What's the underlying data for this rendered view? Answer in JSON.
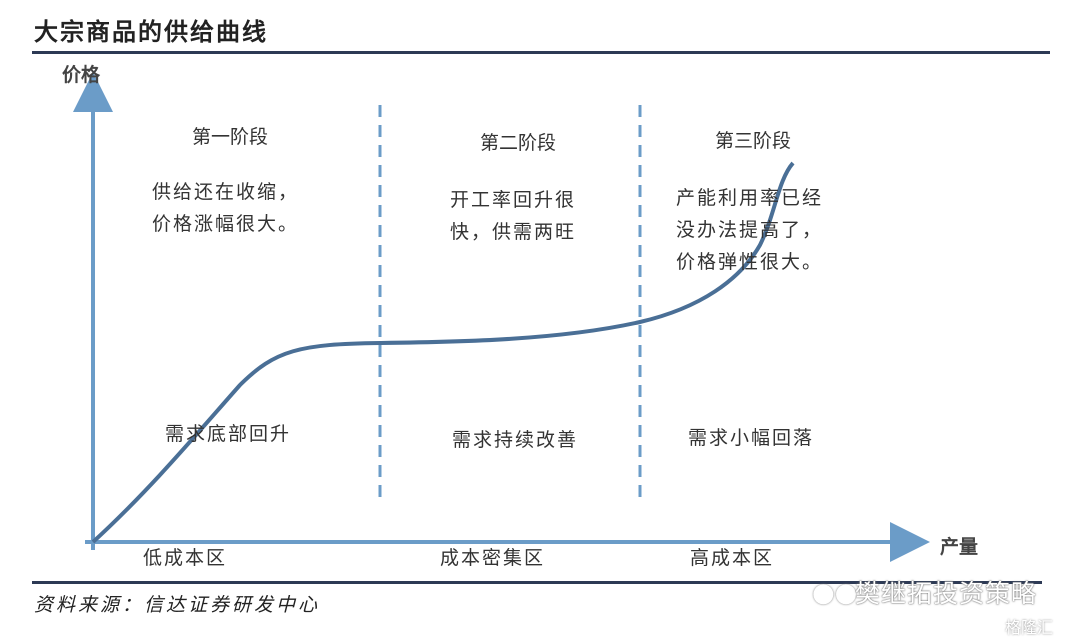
{
  "title": "大宗商品的供给曲线",
  "axes": {
    "y_label": "价格",
    "x_label": "产量"
  },
  "stages": [
    {
      "name": "第一阶段",
      "supply": [
        "供给还在收缩，",
        "价格涨幅很大。"
      ],
      "demand": "需求底部回升",
      "zone": "低成本区"
    },
    {
      "name": "第二阶段",
      "supply": [
        "开工率回升很",
        "快，供需两旺"
      ],
      "demand": "需求持续改善",
      "zone": "成本密集区"
    },
    {
      "name": "第三阶段",
      "supply": [
        "产能利用率已经",
        "没办法提高了，",
        "价格弹性很大。"
      ],
      "demand": "需求小幅回落",
      "zone": "高成本区"
    }
  ],
  "source": "资料来源：信达证券研发中心",
  "watermark": "樊继拓投资策略",
  "watermark2": "格隆汇",
  "colors": {
    "axis": "#6b9cc8",
    "curve": "#4a6f96",
    "rule": "#2d3a55"
  }
}
